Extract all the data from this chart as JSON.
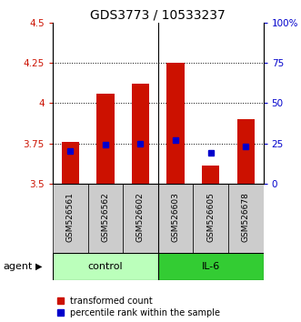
{
  "title": "GDS3773 / 10533237",
  "samples": [
    "GSM526561",
    "GSM526562",
    "GSM526602",
    "GSM526603",
    "GSM526605",
    "GSM526678"
  ],
  "bar_bottom": 3.5,
  "bar_tops": [
    3.76,
    4.06,
    4.12,
    4.25,
    3.61,
    3.9
  ],
  "percentile_values": [
    3.7,
    3.74,
    3.75,
    3.77,
    3.69,
    3.73
  ],
  "ylim_left": [
    3.5,
    4.5
  ],
  "ylim_right": [
    0,
    100
  ],
  "yticks_left": [
    3.5,
    3.75,
    4.0,
    4.25,
    4.5
  ],
  "yticks_left_labels": [
    "3.5",
    "3.75",
    "4",
    "4.25",
    "4.5"
  ],
  "yticks_right": [
    0,
    25,
    50,
    75,
    100
  ],
  "yticks_right_labels": [
    "0",
    "25",
    "50",
    "75",
    "100%"
  ],
  "bar_color": "#cc1100",
  "dot_color": "#0000cc",
  "bar_width": 0.5,
  "control_bg": "#bbffbb",
  "il6_bg": "#33cc33",
  "sample_bg": "#cccccc",
  "title_fontsize": 10,
  "tick_fontsize": 7.5,
  "sample_fontsize": 6.5,
  "group_fontsize": 8,
  "agent_label": "agent",
  "control_label": "control",
  "il6_label": "IL-6",
  "legend_items": [
    "transformed count",
    "percentile rank within the sample"
  ],
  "legend_fontsize": 7
}
